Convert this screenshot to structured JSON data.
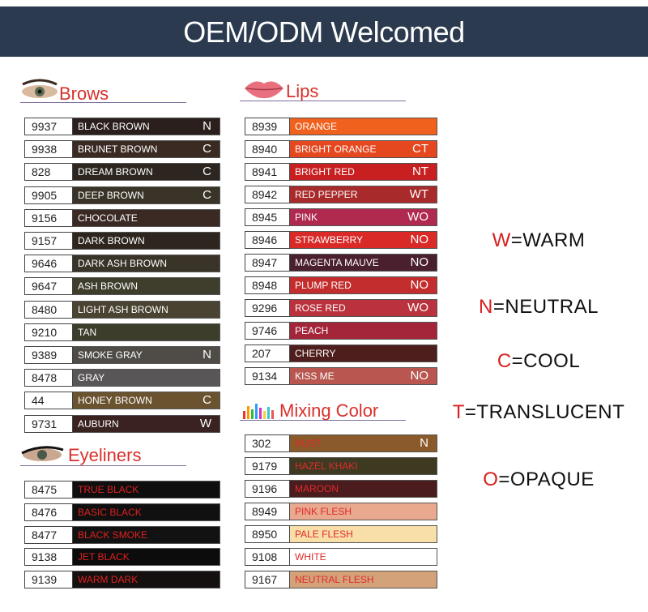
{
  "header": {
    "title": "OEM/ODM Welcomed"
  },
  "sections": [
    {
      "title": "Brows",
      "text_color": "#ffffff",
      "rows": [
        {
          "code": "9937",
          "name": "BLACK BROWN",
          "tag": "N",
          "color": "#2a1f1c"
        },
        {
          "code": "9938",
          "name": "BRUNET BROWN",
          "tag": "C",
          "color": "#3a2a22"
        },
        {
          "code": "828",
          "name": "DREAM BROWN",
          "tag": "C",
          "color": "#2d2620"
        },
        {
          "code": "9905",
          "name": "DEEP BROWN",
          "tag": "C",
          "color": "#3a3428"
        },
        {
          "code": "9156",
          "name": "CHOCOLATE",
          "color": "#3b2a24"
        },
        {
          "code": "9157",
          "name": "DARK BROWN",
          "color": "#2e261e"
        },
        {
          "code": "9646",
          "name": "DARK ASH BROWN",
          "color": "#3a3328"
        },
        {
          "code": "9647",
          "name": "ASH BROWN",
          "color": "#3f3d2c"
        },
        {
          "code": "8480",
          "name": "LIGHT ASH BROWN",
          "color": "#4a4332"
        },
        {
          "code": "9210",
          "name": "TAN",
          "color": "#3c3d2b"
        },
        {
          "code": "9389",
          "name": "SMOKE GRAY",
          "tag": "N",
          "color": "#4f4c48"
        },
        {
          "code": "8478",
          "name": "GRAY",
          "color": "#585656"
        },
        {
          "code": "44",
          "name": "HONEY BROWN",
          "tag": "C",
          "color": "#6b5330"
        },
        {
          "code": "9731",
          "name": "AUBURN",
          "tag": "W",
          "color": "#3a2220"
        }
      ]
    },
    {
      "title": "Eyeliners",
      "text_color": "#e02020",
      "rows": [
        {
          "code": "8475",
          "name": "TRUE BLACK",
          "color": "#0e0e0e"
        },
        {
          "code": "8476",
          "name": "BASIC BLACK",
          "color": "#101010"
        },
        {
          "code": "8477",
          "name": "BLACK SMOKE",
          "color": "#131212"
        },
        {
          "code": "9138",
          "name": "JET BLACK",
          "color": "#0c0c0c"
        },
        {
          "code": "9139",
          "name": "WARM DARK",
          "color": "#141010"
        }
      ]
    },
    {
      "title": "Lips",
      "text_color": "#ffffff",
      "rows": [
        {
          "code": "8939",
          "name": "ORANGE",
          "color": "#f0611e"
        },
        {
          "code": "8940",
          "name": "BRIGHT ORANGE",
          "tag": "CT",
          "color": "#e5471f"
        },
        {
          "code": "8941",
          "name": "BRIGHT RED",
          "tag": "NT",
          "color": "#c82020"
        },
        {
          "code": "8942",
          "name": "RED PEPPER",
          "tag": "WT",
          "color": "#a92a2a"
        },
        {
          "code": "8945",
          "name": "PINK",
          "tag": "WO",
          "color": "#b0294f"
        },
        {
          "code": "8946",
          "name": "STRAWBERRY",
          "tag": "NO",
          "color": "#d92a28"
        },
        {
          "code": "8947",
          "name": "MAGENTA MAUVE",
          "tag": "NO",
          "color": "#4a1f2e"
        },
        {
          "code": "8948",
          "name": "PLUMP RED",
          "tag": "NO",
          "color": "#c42d2d"
        },
        {
          "code": "9296",
          "name": "ROSE RED",
          "tag": "WO",
          "color": "#b9323d"
        },
        {
          "code": "9746",
          "name": "PEACH",
          "color": "#a4253a"
        },
        {
          "code": "207",
          "name": "CHERRY",
          "color": "#4e1e1c"
        },
        {
          "code": "9134",
          "name": "KISS ME",
          "tag": "NO",
          "color": "#b8564f"
        }
      ]
    },
    {
      "title": "Mixing Color",
      "text_color": "#e02a2a",
      "rows": [
        {
          "code": "302",
          "name": "RUST",
          "tag": "N",
          "color": "#8a5a2a"
        },
        {
          "code": "9179",
          "name": "HAZEL KHAKI",
          "color": "#3e3a22"
        },
        {
          "code": "9196",
          "name": "MAROON",
          "color": "#4a1c1e"
        },
        {
          "code": "8949",
          "name": "PINK FLESH",
          "color": "#e9a98e"
        },
        {
          "code": "8950",
          "name": "PALE FLESH",
          "color": "#f8dfa8"
        },
        {
          "code": "9108",
          "name": "WHITE",
          "color": "#ffffff"
        },
        {
          "code": "9167",
          "name": "NEUTRAL FLESH",
          "color": "#d4a278"
        }
      ]
    }
  ],
  "legend": [
    {
      "letter": "W",
      "text": "=WARM"
    },
    {
      "letter": "N",
      "text": "=NEUTRAL"
    },
    {
      "letter": "C",
      "text": "=COOL"
    },
    {
      "letter": "T",
      "text": "=TRANSLUCENT"
    },
    {
      "letter": "O",
      "text": "=OPAQUE"
    }
  ]
}
